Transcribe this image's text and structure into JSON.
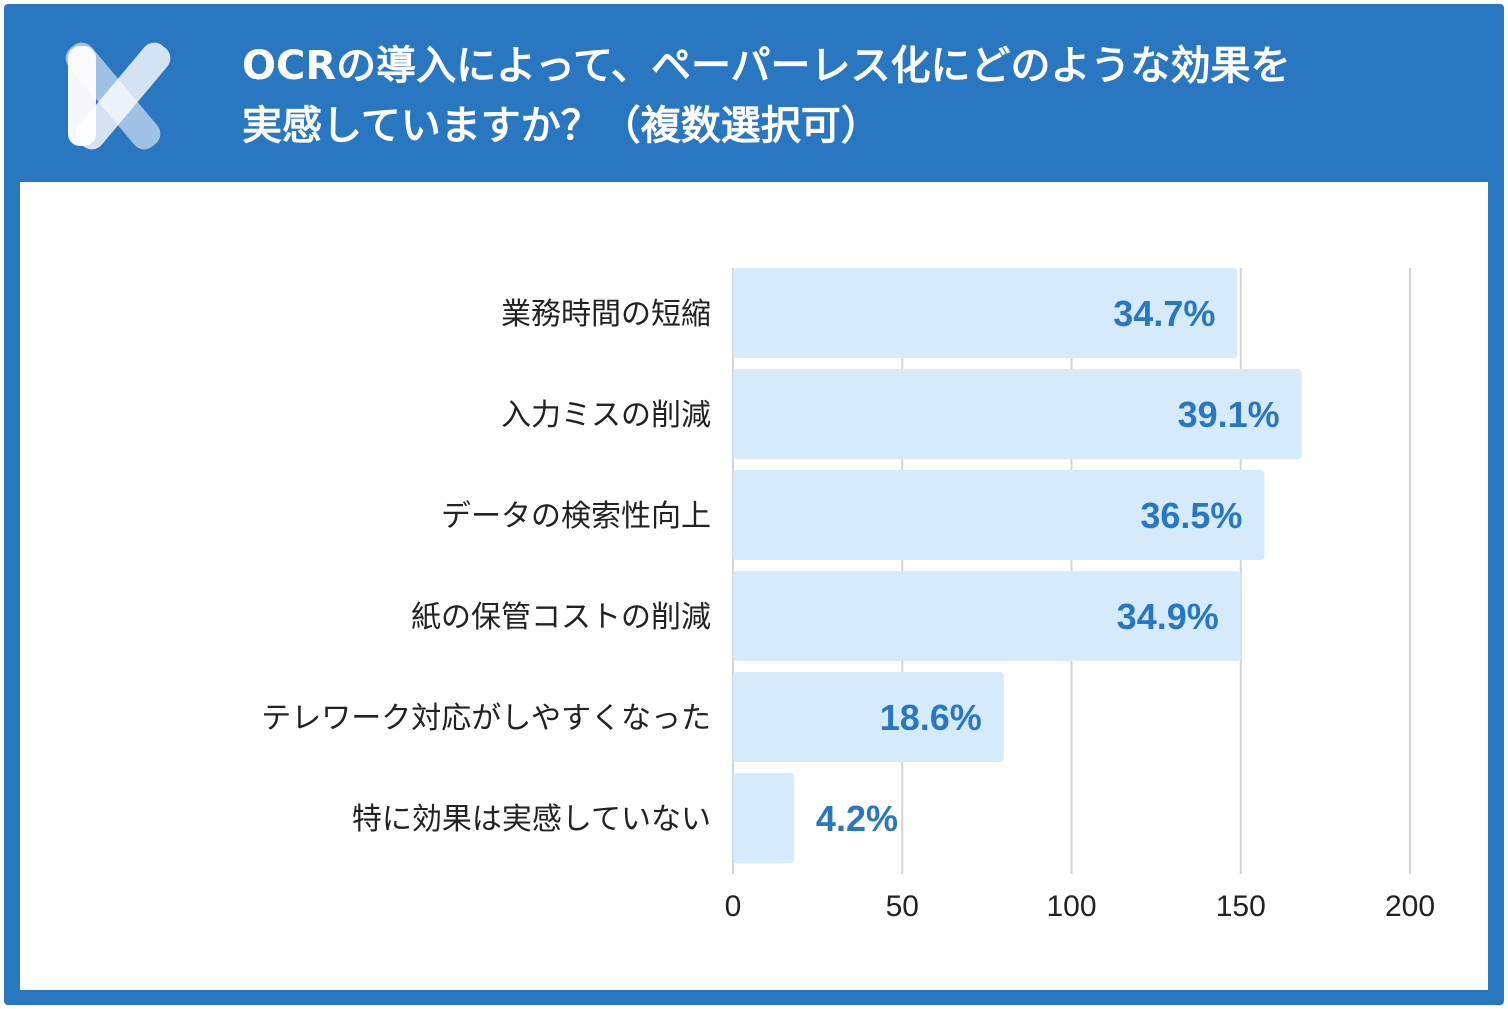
{
  "header": {
    "title_line1": "OCRの導入によって、ペーパーレス化にどのような効果を",
    "title_line2": "実感していますか？（複数選択可）",
    "logo_icon": "x-logo-icon"
  },
  "colors": {
    "frame": "#2a77c1",
    "bar_fill": "#d5ebfb",
    "bar_label": "#2a77c1",
    "grid": "#d4d4d4",
    "text": "#222222"
  },
  "chart_data": {
    "type": "bar",
    "orientation": "horizontal",
    "categories": [
      "業務時間の短縮",
      "入力ミスの削減",
      "データの検索性向上",
      "紙の保管コストの削減",
      "テレワーク対応がしやすくなった",
      "特に効果は実感していない"
    ],
    "values": [
      149,
      168,
      157,
      150,
      80,
      18
    ],
    "value_labels": [
      "34.7%",
      "39.1%",
      "36.5%",
      "34.9%",
      "18.6%",
      "4.2%"
    ],
    "xlim": [
      0,
      200
    ],
    "xticks": [
      0,
      50,
      100,
      150,
      200
    ],
    "grid": true
  }
}
